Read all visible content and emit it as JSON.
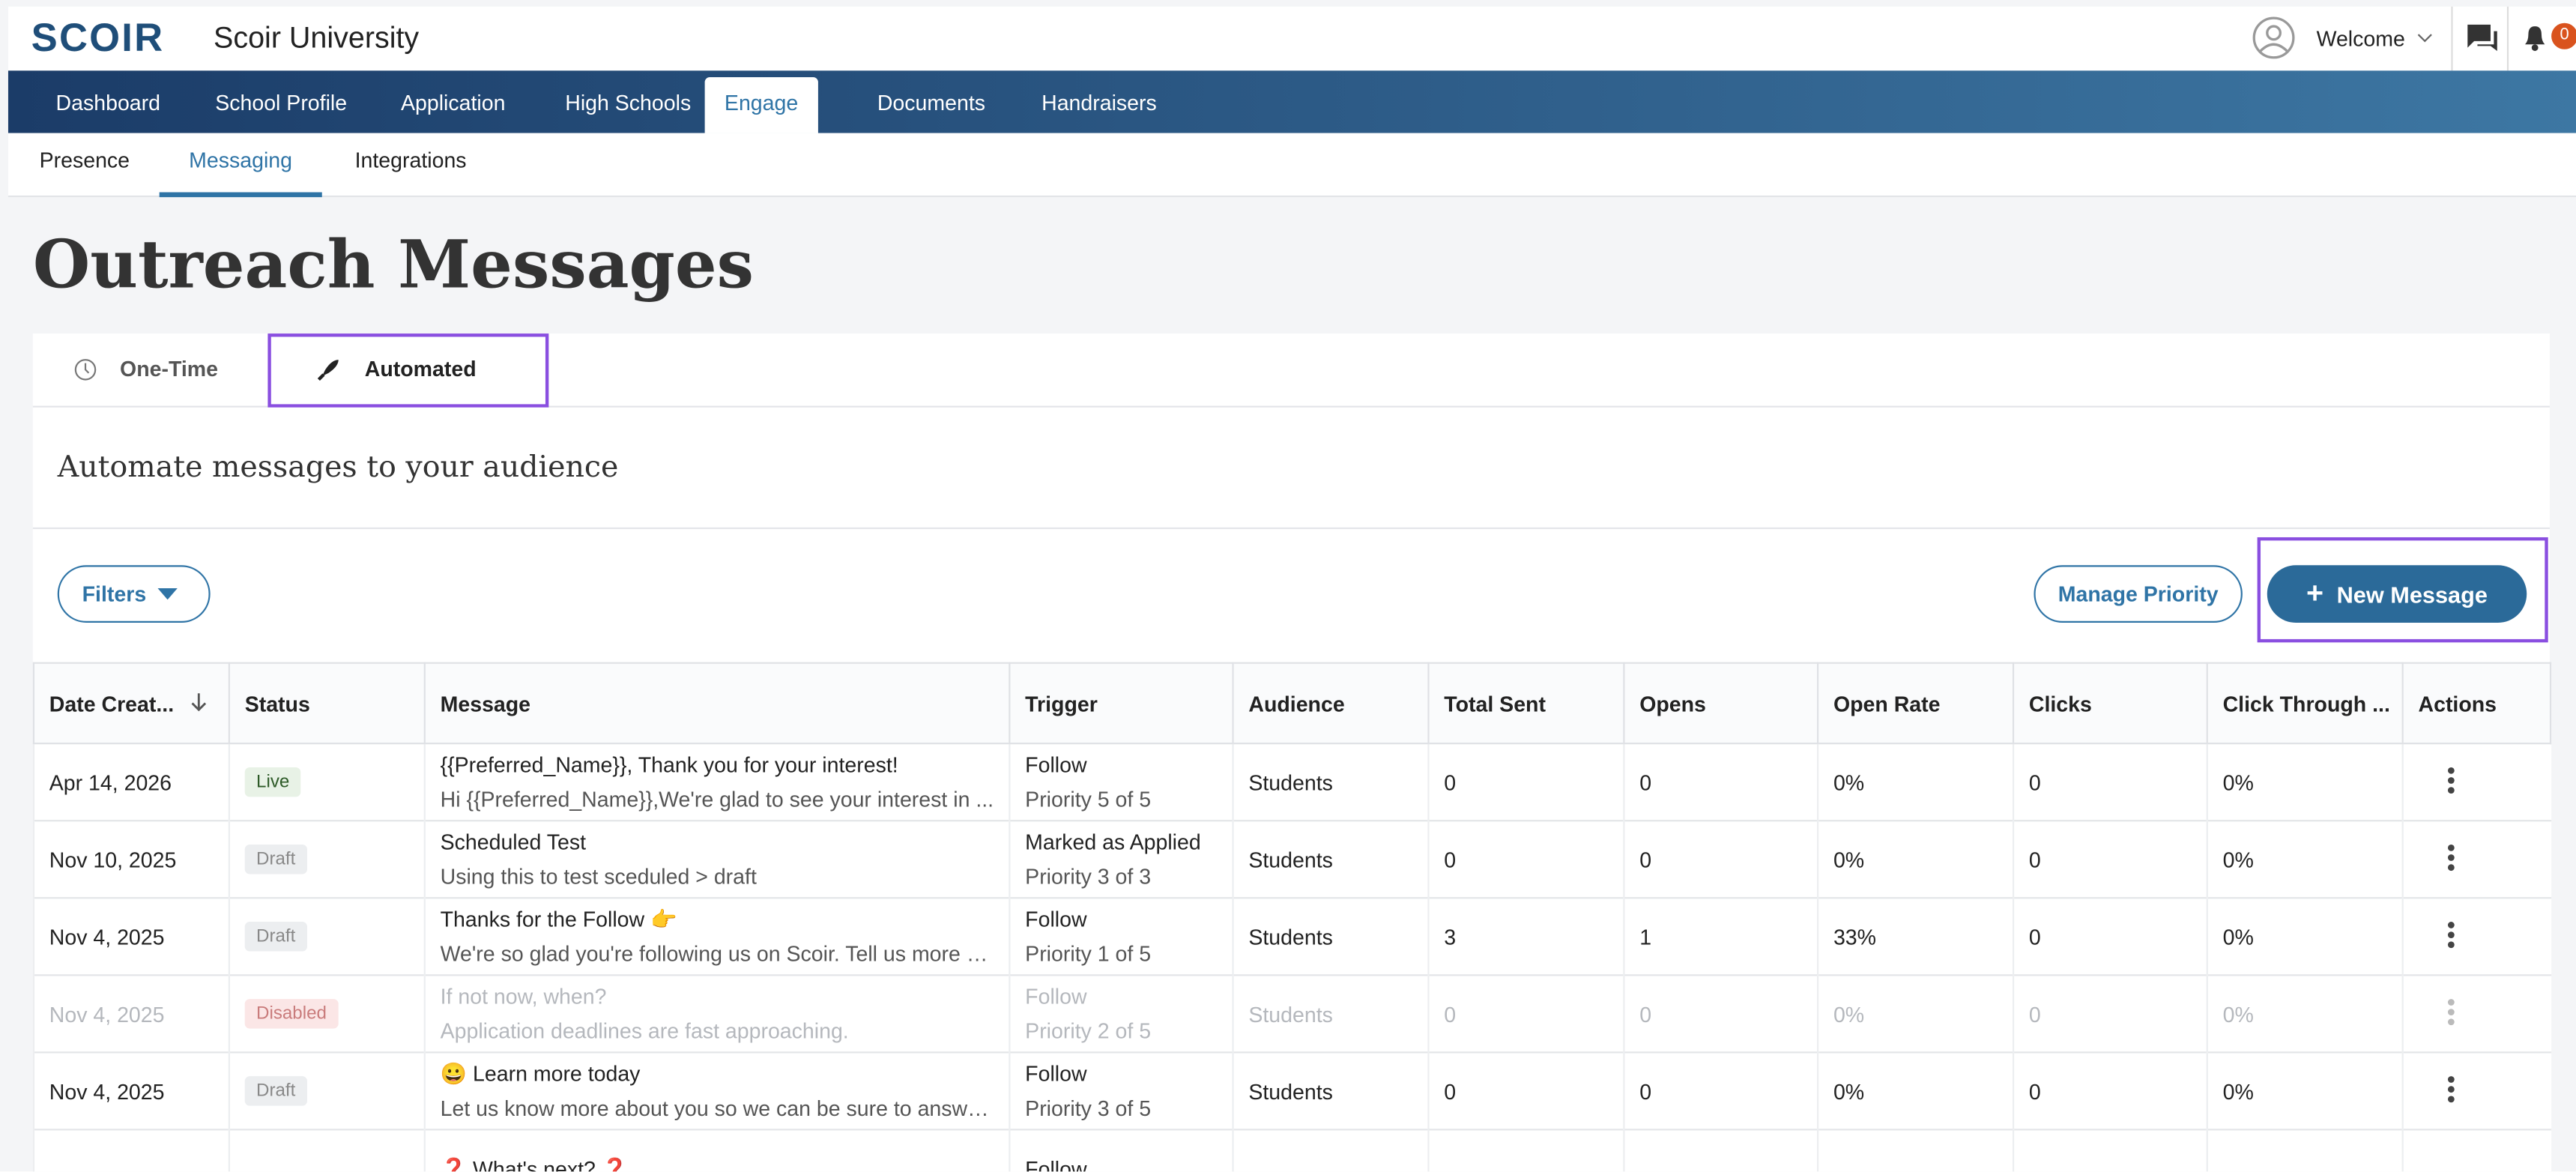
{
  "header": {
    "logo": "SCOIR",
    "org": "Scoir University",
    "welcome": "Welcome",
    "badge": "0"
  },
  "nav": [
    "Dashboard",
    "School Profile",
    "Application",
    "High Schools",
    "Engage",
    "Documents",
    "Handraisers"
  ],
  "nav_active": 4,
  "subnav": [
    "Presence",
    "Messaging",
    "Integrations"
  ],
  "subnav_active": 1,
  "title": "Outreach Messages",
  "tabs": [
    "One-Time",
    "Automated"
  ],
  "section_heading": "Automate messages to your audience",
  "buttons": {
    "filters": "Filters",
    "manage": "Manage Priority",
    "new": "New Message"
  },
  "table": {
    "columns": [
      "Date Creat...",
      "Status",
      "Message",
      "Trigger",
      "Audience",
      "Total Sent",
      "Opens",
      "Open Rate",
      "Clicks",
      "Click Through ...",
      "Actions"
    ],
    "rows": [
      {
        "date": "Apr 14, 2026",
        "status": "Live",
        "title": "{{Preferred_Name}}, Thank you for your interest!",
        "preview": "Hi {{Preferred_Name}},We're glad to see your interest in ...",
        "trigger": "Follow",
        "priority": "Priority 5 of 5",
        "audience": "Students",
        "sent": "0",
        "opens": "0",
        "rate": "0%",
        "clicks": "0",
        "ctr": "0%"
      },
      {
        "date": "Nov 10, 2025",
        "status": "Draft",
        "title": "Scheduled Test",
        "preview": "Using this to test sceduled > draft",
        "trigger": "Marked as Applied",
        "priority": "Priority 3 of 3",
        "audience": "Students",
        "sent": "0",
        "opens": "0",
        "rate": "0%",
        "clicks": "0",
        "ctr": "0%"
      },
      {
        "date": "Nov 4, 2025",
        "status": "Draft",
        "title": "Thanks for the Follow 👉",
        "preview": "We're so glad you're following us on Scoir. Tell us more a...",
        "trigger": "Follow",
        "priority": "Priority 1 of 5",
        "audience": "Students",
        "sent": "3",
        "opens": "1",
        "rate": "33%",
        "clicks": "0",
        "ctr": "0%"
      },
      {
        "date": "Nov 4, 2025",
        "status": "Disabled",
        "title": "If not now, when?",
        "preview": "Application deadlines are fast approaching.",
        "trigger": "Follow",
        "priority": "Priority 2 of 5",
        "audience": "Students",
        "sent": "0",
        "opens": "0",
        "rate": "0%",
        "clicks": "0",
        "ctr": "0%"
      },
      {
        "date": "Nov 4, 2025",
        "status": "Draft",
        "title": "😀 Learn more today",
        "preview": "Let us know more about you so we can be sure to answe...",
        "trigger": "Follow",
        "priority": "Priority 3 of 5",
        "audience": "Students",
        "sent": "0",
        "opens": "0",
        "rate": "0%",
        "clicks": "0",
        "ctr": "0%"
      },
      {
        "title": "❓ What's next? ❓",
        "trigger": "Follow"
      }
    ]
  }
}
